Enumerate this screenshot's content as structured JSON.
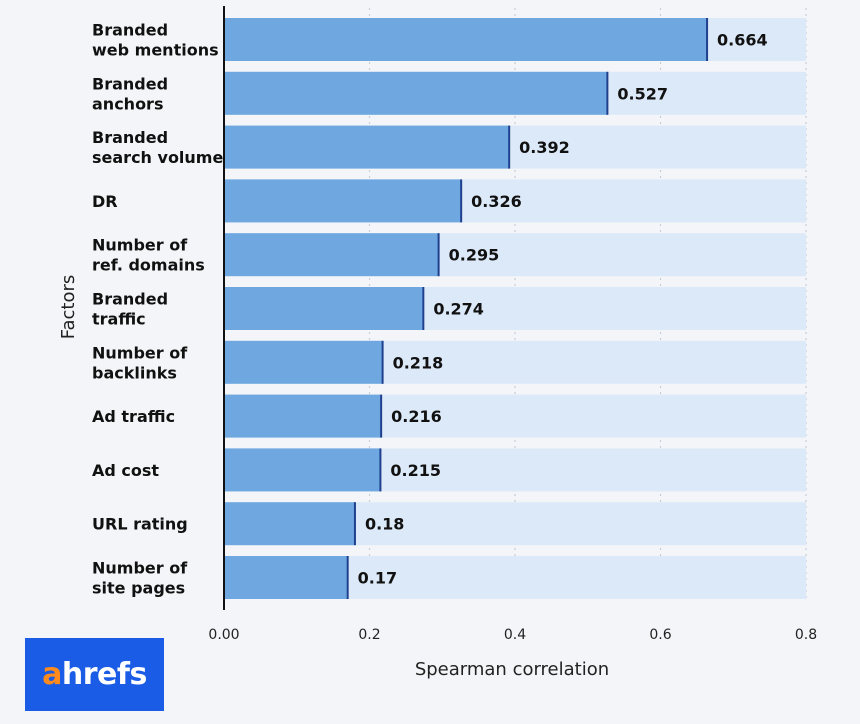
{
  "chart_data": {
    "type": "bar",
    "orientation": "horizontal",
    "categories": [
      [
        "Branded",
        "web mentions"
      ],
      [
        "Branded",
        "anchors"
      ],
      [
        "Branded",
        "search volume"
      ],
      [
        "DR"
      ],
      [
        "Number of",
        "ref. domains"
      ],
      [
        "Branded",
        "traffic"
      ],
      [
        "Number of",
        "backlinks"
      ],
      [
        "Ad traffic"
      ],
      [
        "Ad cost"
      ],
      [
        "URL rating"
      ],
      [
        "Number of",
        "site pages"
      ]
    ],
    "values": [
      0.664,
      0.527,
      0.392,
      0.326,
      0.295,
      0.274,
      0.218,
      0.216,
      0.215,
      0.18,
      0.17
    ],
    "value_labels": [
      "0.664",
      "0.527",
      "0.392",
      "0.326",
      "0.295",
      "0.274",
      "0.218",
      "0.216",
      "0.215",
      "0.18",
      "0.17"
    ],
    "xlim": [
      0,
      0.8
    ],
    "xticks": [
      0,
      0.2,
      0.4,
      0.6,
      0.8
    ],
    "xtick_labels": [
      "0.00",
      "0.2",
      "0.4",
      "0.6",
      "0.8"
    ],
    "xlabel": "Spearman correlation",
    "ylabel": "Factors",
    "grid": "vertical dotted",
    "colors": {
      "bar": "#6fa8e0",
      "bar_edge": "#1f3f8f",
      "track": "#dce9f8",
      "grid": "#c9cfd8",
      "axis": "#111111"
    }
  },
  "logo": {
    "first_letter": "a",
    "rest": "hrefs",
    "colors": {
      "background": "#1a5ce5",
      "first_letter": "#ff8a1e",
      "rest": "#ffffff"
    }
  }
}
